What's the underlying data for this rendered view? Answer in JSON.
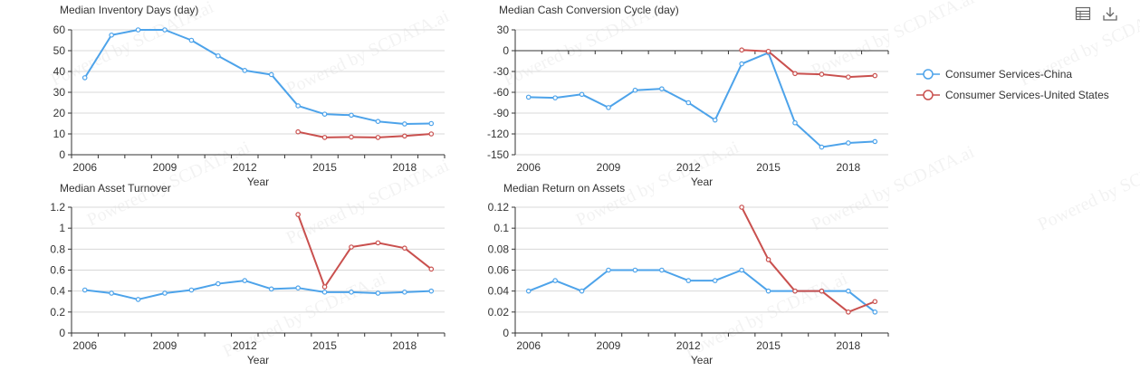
{
  "toolbar": {
    "data_view_icon": "table-icon",
    "save_icon": "download-icon"
  },
  "watermark": "Powered by SCDATA.ai",
  "legend": [
    {
      "name": "Consumer Services-China",
      "color": "#4DA3EA"
    },
    {
      "name": "Consumer Services-United States",
      "color": "#C9504E"
    }
  ],
  "chart_data": [
    {
      "type": "line",
      "title": "Median Inventory Days (day)",
      "xlabel": "Year",
      "x": [
        2006,
        2007,
        2008,
        2009,
        2010,
        2011,
        2012,
        2013,
        2014,
        2015,
        2016,
        2017,
        2018,
        2019
      ],
      "xticks": [
        2006,
        2009,
        2012,
        2015,
        2018
      ],
      "ylim": [
        0,
        60
      ],
      "yticks": [
        0,
        10,
        20,
        30,
        40,
        50,
        60
      ],
      "grid": true,
      "series": [
        {
          "name": "Consumer Services-China",
          "color": "#4DA3EA",
          "values": [
            37,
            57.5,
            60,
            60,
            55,
            47.5,
            40.5,
            38.5,
            23.5,
            19.5,
            19,
            16,
            14.8,
            15
          ]
        },
        {
          "name": "Consumer Services-United States",
          "color": "#C9504E",
          "values": [
            null,
            null,
            null,
            null,
            null,
            null,
            null,
            null,
            11,
            8.3,
            8.5,
            8.3,
            9,
            10
          ]
        }
      ]
    },
    {
      "type": "line",
      "title": "Median Cash Conversion Cycle (day)",
      "xlabel": "Year",
      "x": [
        2006,
        2007,
        2008,
        2009,
        2010,
        2011,
        2012,
        2013,
        2014,
        2015,
        2016,
        2017,
        2018,
        2019
      ],
      "xticks": [
        2006,
        2009,
        2012,
        2015,
        2018
      ],
      "ylim": [
        -150,
        30
      ],
      "yticks": [
        -150,
        -120,
        -90,
        -60,
        -30,
        0,
        30
      ],
      "grid": true,
      "series": [
        {
          "name": "Consumer Services-China",
          "color": "#4DA3EA",
          "values": [
            -67,
            -68,
            -63,
            -82,
            -57,
            -55,
            -75,
            -100,
            -19,
            -3,
            -104,
            -139,
            -133,
            -131
          ]
        },
        {
          "name": "Consumer Services-United States",
          "color": "#C9504E",
          "values": [
            null,
            null,
            null,
            null,
            null,
            null,
            null,
            null,
            1,
            -1,
            -33,
            -34,
            -38,
            -36
          ]
        }
      ]
    },
    {
      "type": "line",
      "title": "Median Asset Turnover",
      "xlabel": "Year",
      "x": [
        2006,
        2007,
        2008,
        2009,
        2010,
        2011,
        2012,
        2013,
        2014,
        2015,
        2016,
        2017,
        2018,
        2019
      ],
      "xticks": [
        2006,
        2009,
        2012,
        2015,
        2018
      ],
      "ylim": [
        0,
        1.2
      ],
      "yticks": [
        0,
        0.2,
        0.4,
        0.6,
        0.8,
        1,
        1.2
      ],
      "grid": true,
      "series": [
        {
          "name": "Consumer Services-China",
          "color": "#4DA3EA",
          "values": [
            0.41,
            0.38,
            0.32,
            0.38,
            0.41,
            0.47,
            0.5,
            0.42,
            0.43,
            0.39,
            0.39,
            0.38,
            0.39,
            0.4
          ]
        },
        {
          "name": "Consumer Services-United States",
          "color": "#C9504E",
          "values": [
            null,
            null,
            null,
            null,
            null,
            null,
            null,
            null,
            1.13,
            0.44,
            0.82,
            0.86,
            0.81,
            0.61
          ]
        }
      ]
    },
    {
      "type": "line",
      "title": "Median Return on Assets",
      "xlabel": "Year",
      "x": [
        2006,
        2007,
        2008,
        2009,
        2010,
        2011,
        2012,
        2013,
        2014,
        2015,
        2016,
        2017,
        2018,
        2019
      ],
      "xticks": [
        2006,
        2009,
        2012,
        2015,
        2018
      ],
      "ylim": [
        0,
        0.12
      ],
      "yticks": [
        0,
        0.02,
        0.04,
        0.06,
        0.08,
        0.1,
        0.12
      ],
      "grid": true,
      "series": [
        {
          "name": "Consumer Services-China",
          "color": "#4DA3EA",
          "values": [
            0.04,
            0.05,
            0.04,
            0.06,
            0.06,
            0.06,
            0.05,
            0.05,
            0.06,
            0.04,
            0.04,
            0.04,
            0.04,
            0.02
          ]
        },
        {
          "name": "Consumer Services-United States",
          "color": "#C9504E",
          "values": [
            null,
            null,
            null,
            null,
            null,
            null,
            null,
            null,
            0.12,
            0.07,
            0.04,
            0.04,
            0.02,
            0.03
          ]
        }
      ]
    }
  ]
}
